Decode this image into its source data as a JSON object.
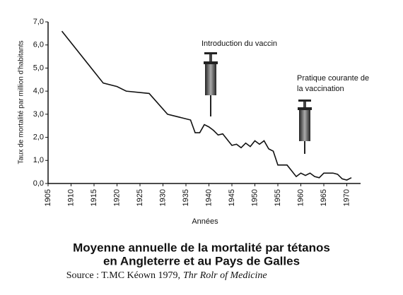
{
  "chart_data": {
    "type": "line",
    "y_label": "Taux de mortalité par million d'habitants",
    "x_label": "Années",
    "title": "Moyenne annuelle de la mortalité par tétanos",
    "subtitle": "en Angleterre et au Pays de Galles",
    "source": "Source : T.MC Kéown 1979,",
    "source_title": "Thr Rolr of Medicine",
    "annotations": [
      "Introduction du vaccin",
      "Pratique courante de",
      "la vaccination"
    ],
    "xlim": [
      1905,
      1973
    ],
    "ylim": [
      0,
      7
    ],
    "xticks": [
      1905,
      1910,
      1915,
      1920,
      1925,
      1930,
      1935,
      1940,
      1945,
      1950,
      1955,
      1960,
      1965,
      1970
    ],
    "yticks": [
      {
        "value": 0,
        "label": "0,0"
      },
      {
        "value": 1,
        "label": "1,0"
      },
      {
        "value": 2,
        "label": "2,0"
      },
      {
        "value": 3,
        "label": "3,0"
      },
      {
        "value": 4,
        "label": "4,0"
      },
      {
        "value": 5,
        "label": "5,0"
      },
      {
        "value": 6,
        "label": "6,0"
      },
      {
        "value": 7,
        "label": "7,0"
      }
    ],
    "color": "#111111",
    "x": [
      1908,
      1917,
      1920,
      1922,
      1927,
      1931,
      1934,
      1936,
      1937,
      1938,
      1939,
      1940,
      1941,
      1942,
      1943,
      1944,
      1945,
      1946,
      1947,
      1948,
      1949,
      1950,
      1951,
      1952,
      1953,
      1954,
      1955,
      1956,
      1957,
      1958,
      1959,
      1960,
      1961,
      1962,
      1963,
      1964,
      1965,
      1966,
      1967,
      1968,
      1969,
      1970,
      1971
    ],
    "values": [
      6.6,
      4.35,
      4.2,
      4.0,
      3.9,
      3.0,
      2.85,
      2.75,
      2.2,
      2.2,
      2.55,
      2.45,
      2.3,
      2.1,
      2.15,
      1.9,
      1.65,
      1.7,
      1.55,
      1.75,
      1.6,
      1.85,
      1.7,
      1.85,
      1.5,
      1.4,
      0.8,
      0.8,
      0.8,
      0.55,
      0.3,
      0.45,
      0.35,
      0.45,
      0.3,
      0.25,
      0.45,
      0.45,
      0.45,
      0.4,
      0.2,
      0.15,
      0.25
    ]
  }
}
